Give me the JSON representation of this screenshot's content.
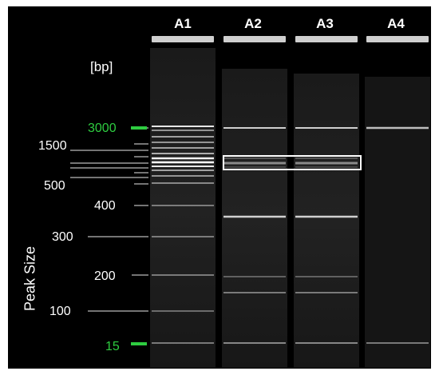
{
  "lanes": [
    {
      "label": "A1"
    },
    {
      "label": "A2"
    },
    {
      "label": "A3"
    },
    {
      "label": "A4"
    }
  ],
  "axis": {
    "unit_label": "[bp]",
    "title": "Peak Size"
  },
  "ladder": {
    "left_labels": [
      "1500",
      "500",
      "100"
    ],
    "mid_labels": [
      "400",
      "300",
      "200"
    ],
    "markers": [
      "3000",
      "15"
    ],
    "marker_color": "#2ecc40"
  },
  "highlight_color": "#ffffff"
}
